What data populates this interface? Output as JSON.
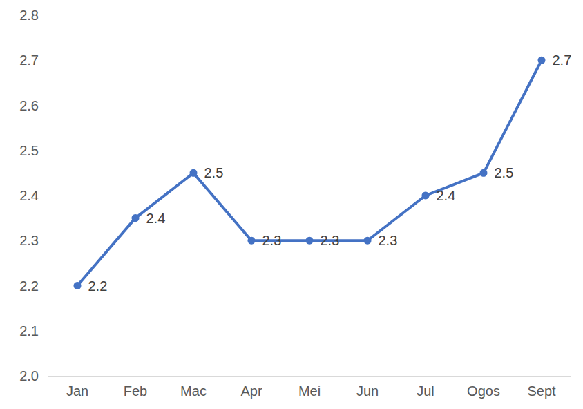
{
  "chart_data": {
    "type": "line",
    "categories": [
      "Jan",
      "Feb",
      "Mac",
      "Apr",
      "Mei",
      "Jun",
      "Jul",
      "Ogos",
      "Sept"
    ],
    "values": [
      2.2,
      2.35,
      2.45,
      2.3,
      2.3,
      2.3,
      2.4,
      2.45,
      2.7
    ],
    "value_labels": [
      "2.2",
      "2.4",
      "2.5",
      "2.3",
      "2.3",
      "2.3",
      "2.4",
      "2.5",
      "2.7"
    ],
    "color": "#4472c4",
    "ylim": [
      2.0,
      2.8
    ],
    "yticks": [
      {
        "value": 2.0,
        "label": "2.0"
      },
      2.1,
      2.2,
      2.3,
      2.4,
      2.5,
      2.6,
      2.7,
      2.8
    ],
    "grid": false,
    "data_labels": true,
    "marker": "circle"
  }
}
